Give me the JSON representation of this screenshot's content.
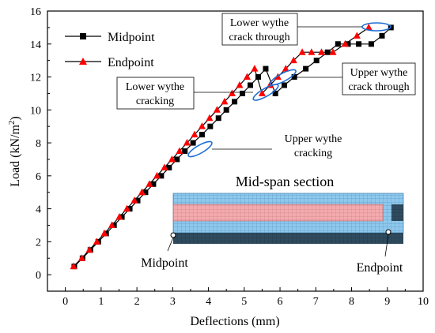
{
  "chart_data": {
    "type": "line",
    "xlabel": "Deflections (mm)",
    "ylabel_main": "Load (kN/m",
    "ylabel_sup": "2",
    "ylabel_close": ")",
    "xlim": [
      -0.5,
      10
    ],
    "ylim": [
      -1,
      16
    ],
    "xticks": [
      "0",
      "1",
      "2",
      "3",
      "4",
      "5",
      "6",
      "7",
      "8",
      "9",
      "10"
    ],
    "yticks": [
      "0",
      "2",
      "4",
      "6",
      "8",
      "10",
      "12",
      "14",
      "16"
    ],
    "grid": false,
    "legend_placement": "top-left",
    "series": [
      {
        "name": "Midpoint",
        "marker": "square",
        "color": "#000000",
        "x": [
          0.25,
          0.48,
          0.7,
          0.92,
          1.14,
          1.36,
          1.58,
          1.8,
          2.02,
          2.24,
          2.46,
          2.68,
          2.9,
          3.12,
          3.34,
          3.57,
          3.82,
          4.05,
          4.28,
          4.5,
          4.73,
          4.95,
          5.17,
          5.39,
          5.6,
          5.87,
          6.12,
          6.4,
          6.72,
          7.02,
          7.33,
          7.62,
          7.9,
          8.2,
          8.55,
          8.85,
          9.1
        ],
        "y": [
          0.5,
          1.0,
          1.5,
          2.0,
          2.5,
          3.0,
          3.5,
          4.0,
          4.5,
          5.0,
          5.5,
          6.0,
          6.5,
          7.0,
          7.5,
          8.0,
          8.5,
          9.0,
          9.5,
          10.0,
          10.5,
          11.0,
          11.5,
          12.0,
          12.5,
          11.0,
          11.5,
          12.0,
          12.5,
          13.0,
          13.5,
          14.0,
          14.0,
          14.0,
          14.0,
          14.5,
          15.0
        ]
      },
      {
        "name": "Endpoint",
        "marker": "triangle",
        "color": "#ff0000",
        "x": [
          0.23,
          0.46,
          0.67,
          0.88,
          1.09,
          1.3,
          1.51,
          1.72,
          1.93,
          2.14,
          2.35,
          2.56,
          2.77,
          2.98,
          3.19,
          3.4,
          3.61,
          3.82,
          4.03,
          4.24,
          4.45,
          4.66,
          4.87,
          5.08,
          5.29,
          5.5,
          5.72,
          5.94,
          6.16,
          6.38,
          6.62,
          6.88,
          7.16,
          7.48,
          7.82,
          8.15,
          8.48
        ],
        "y": [
          0.5,
          1.0,
          1.5,
          2.0,
          2.5,
          3.0,
          3.5,
          4.0,
          4.5,
          5.0,
          5.5,
          6.0,
          6.5,
          7.0,
          7.5,
          8.0,
          8.5,
          9.0,
          9.5,
          10.0,
          10.5,
          11.0,
          11.5,
          12.0,
          12.5,
          11.0,
          11.5,
          12.0,
          12.5,
          13.0,
          13.5,
          13.5,
          13.5,
          13.5,
          14.0,
          14.5,
          15.0
        ]
      }
    ],
    "annotations": [
      {
        "label": [
          "Lower wythe",
          "crack through"
        ],
        "boxed": true,
        "circle_at": [
          9.05,
          14.98
        ]
      },
      {
        "label": [
          "Upper wythe",
          "crack through"
        ],
        "boxed": true,
        "circle_at": [
          6.25,
          11.9
        ]
      },
      {
        "label": [
          "Lower wythe",
          "cracking"
        ],
        "boxed": true,
        "circle_at": [
          5.55,
          10.95
        ]
      },
      {
        "label": [
          "Upper wythe",
          "cracking"
        ],
        "boxed": false,
        "circle_at": [
          3.75,
          7.5
        ]
      }
    ],
    "inset": {
      "title": "Mid-span section",
      "labels": [
        "Midpoint",
        "Endpoint"
      ]
    }
  }
}
